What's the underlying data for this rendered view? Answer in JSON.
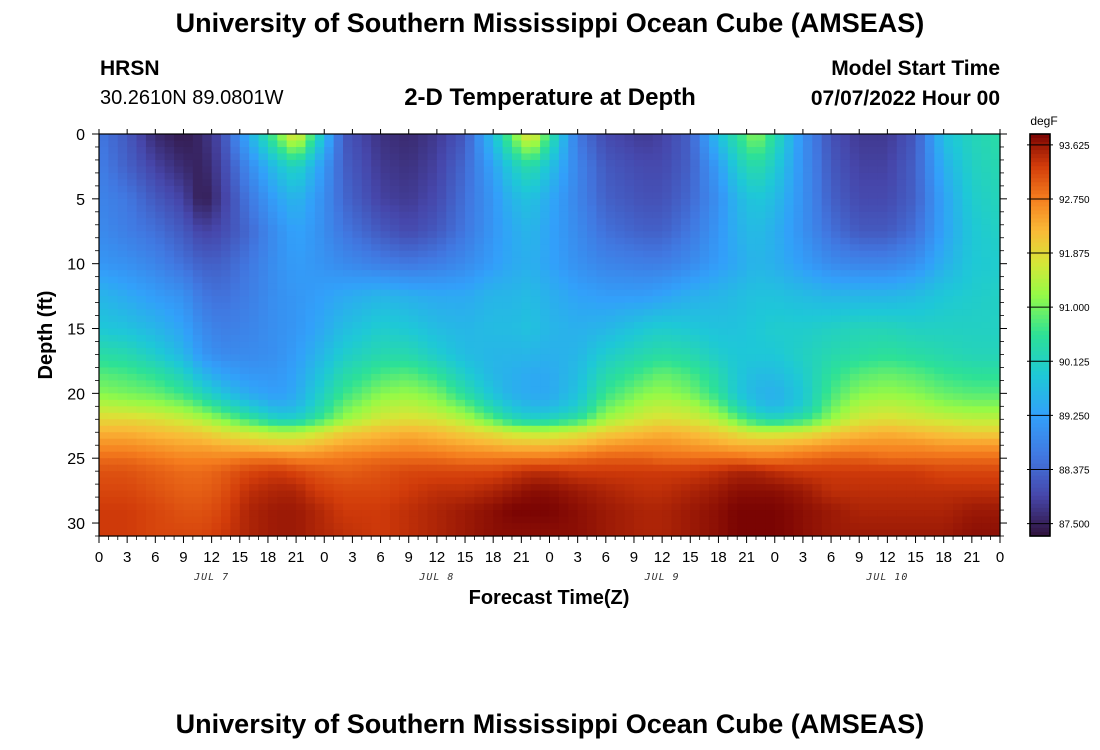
{
  "page": {
    "title": "University of Southern Mississippi Ocean Cube (AMSEAS)",
    "station_code": "HRSN",
    "location": "30.2610N  89.0801W",
    "plot_title": "2-D Temperature at Depth",
    "model_start_label": "Model Start Time",
    "model_start_value": "07/07/2022 Hour 00",
    "footer_title": "University of Southern Mississippi Ocean Cube (AMSEAS)"
  },
  "chart_data": {
    "type": "heatmap",
    "title": "2-D Temperature at Depth",
    "xlabel": "Forecast Time(Z)",
    "ylabel": "Depth (ft)",
    "x_tick_labels": [
      "0",
      "3",
      "6",
      "9",
      "12",
      "15",
      "18",
      "21",
      "0",
      "3",
      "6",
      "9",
      "12",
      "15",
      "18",
      "21",
      "0",
      "3",
      "6",
      "9",
      "12",
      "15",
      "18",
      "21",
      "0",
      "3",
      "6",
      "9",
      "12",
      "15",
      "18",
      "21",
      "0"
    ],
    "x_range_hours": [
      0,
      96
    ],
    "date_labels": [
      {
        "label": "JUL 7",
        "hour": 12
      },
      {
        "label": "JUL 8",
        "hour": 36
      },
      {
        "label": "JUL 9",
        "hour": 60
      },
      {
        "label": "JUL 10",
        "hour": 84
      }
    ],
    "y_range_ft": [
      0,
      31
    ],
    "y_ticks": [
      0,
      5,
      10,
      15,
      20,
      25,
      30
    ],
    "colorbar_unit": "degF",
    "colorbar_ticks": [
      "93.625",
      "92.750",
      "91.875",
      "91.000",
      "90.125",
      "89.250",
      "88.375",
      "87.500"
    ],
    "colorbar_range": [
      87.3,
      93.8
    ],
    "depth_levels_ft": [
      0,
      2.5,
      5,
      7.5,
      10,
      12.5,
      15,
      17,
      18.5,
      20,
      21,
      22,
      23,
      24,
      25,
      26,
      27.5,
      29,
      31
    ],
    "time_nodes_hours": [
      0,
      3,
      6,
      9,
      11,
      13,
      16,
      19,
      21,
      23,
      26,
      30,
      33,
      36,
      39,
      42,
      44,
      46,
      48,
      51,
      54,
      58,
      60,
      63,
      66,
      68,
      70,
      72,
      75,
      78,
      81,
      84,
      87,
      90,
      93,
      96
    ],
    "temperature_degF": [
      [
        88.6,
        88.2,
        87.6,
        87.4,
        87.6,
        88.0,
        89.5,
        91.0,
        92.0,
        90.5,
        88.2,
        87.7,
        87.6,
        87.8,
        88.2,
        89.8,
        91.0,
        92.0,
        90.6,
        88.6,
        88.0,
        87.8,
        87.9,
        88.3,
        89.8,
        90.5,
        91.2,
        90.4,
        89.0,
        88.1,
        87.8,
        87.8,
        88.2,
        89.8,
        90.2,
        90.4
      ],
      [
        88.7,
        88.3,
        87.9,
        87.6,
        87.5,
        87.9,
        88.9,
        89.8,
        90.2,
        89.5,
        88.3,
        87.8,
        87.7,
        87.9,
        88.4,
        89.3,
        90.0,
        90.4,
        89.8,
        88.8,
        88.2,
        88.0,
        88.0,
        88.3,
        89.2,
        90.0,
        90.4,
        90.0,
        89.0,
        88.2,
        87.9,
        87.9,
        88.3,
        89.5,
        90.1,
        90.3
      ],
      [
        88.8,
        88.6,
        88.2,
        87.9,
        87.4,
        87.8,
        88.6,
        89.3,
        89.6,
        89.2,
        88.4,
        87.9,
        87.8,
        88.0,
        88.5,
        89.1,
        89.6,
        89.8,
        89.4,
        88.8,
        88.3,
        88.1,
        88.1,
        88.4,
        89.0,
        89.6,
        89.9,
        89.7,
        89.0,
        88.3,
        88.0,
        88.0,
        88.3,
        89.3,
        90.0,
        90.2
      ],
      [
        88.9,
        88.7,
        88.5,
        88.2,
        87.9,
        88.0,
        88.4,
        89.0,
        89.3,
        89.1,
        88.6,
        88.2,
        88.0,
        88.2,
        88.6,
        89.1,
        89.4,
        89.6,
        89.3,
        88.9,
        88.5,
        88.3,
        88.3,
        88.6,
        89.1,
        89.5,
        89.7,
        89.5,
        89.0,
        88.5,
        88.2,
        88.2,
        88.5,
        89.3,
        89.9,
        90.1
      ],
      [
        89.1,
        89.0,
        88.8,
        88.5,
        88.3,
        88.3,
        88.6,
        89.0,
        89.2,
        89.1,
        88.9,
        88.7,
        88.6,
        88.7,
        88.9,
        89.2,
        89.4,
        89.5,
        89.3,
        89.0,
        88.8,
        88.7,
        88.7,
        88.9,
        89.2,
        89.4,
        89.6,
        89.5,
        89.2,
        88.9,
        88.8,
        88.8,
        89.0,
        89.5,
        89.9,
        90.0
      ],
      [
        89.6,
        89.4,
        89.2,
        89.0,
        88.6,
        88.5,
        88.7,
        89.0,
        89.1,
        89.2,
        89.4,
        89.6,
        89.5,
        89.4,
        89.4,
        89.6,
        89.6,
        89.7,
        89.5,
        89.3,
        89.2,
        89.2,
        89.3,
        89.5,
        89.6,
        89.7,
        89.8,
        89.8,
        89.7,
        89.6,
        89.6,
        89.6,
        89.7,
        89.9,
        90.0,
        90.1
      ],
      [
        89.9,
        89.8,
        89.6,
        89.3,
        88.9,
        88.7,
        88.8,
        89.0,
        89.1,
        89.3,
        89.7,
        90.0,
        89.9,
        89.7,
        89.6,
        89.7,
        89.7,
        89.8,
        89.6,
        89.5,
        89.6,
        89.9,
        90.0,
        89.9,
        89.8,
        89.8,
        89.9,
        90.0,
        90.0,
        90.1,
        90.2,
        90.2,
        90.1,
        90.1,
        90.1,
        90.1
      ],
      [
        90.4,
        90.3,
        90.0,
        89.6,
        89.1,
        88.9,
        88.9,
        89.0,
        89.2,
        89.5,
        90.0,
        90.3,
        90.3,
        90.0,
        89.7,
        89.6,
        89.6,
        89.6,
        89.5,
        89.6,
        90.0,
        90.3,
        90.4,
        90.3,
        90.0,
        89.9,
        89.9,
        89.9,
        90.1,
        90.3,
        90.4,
        90.5,
        90.4,
        90.3,
        90.2,
        90.2
      ],
      [
        90.8,
        90.7,
        90.5,
        90.1,
        89.6,
        89.3,
        89.1,
        89.1,
        89.3,
        89.7,
        90.3,
        90.7,
        90.8,
        90.5,
        90.0,
        89.6,
        89.5,
        89.4,
        89.4,
        89.7,
        90.3,
        90.7,
        90.9,
        90.7,
        90.3,
        89.9,
        89.7,
        89.7,
        90.0,
        90.5,
        90.8,
        90.9,
        90.8,
        90.6,
        90.5,
        90.5
      ],
      [
        91.1,
        91.0,
        90.9,
        90.6,
        90.2,
        89.8,
        89.4,
        89.2,
        89.4,
        89.9,
        90.6,
        91.1,
        91.2,
        91.0,
        90.4,
        89.8,
        89.5,
        89.4,
        89.4,
        89.8,
        90.6,
        91.1,
        91.2,
        91.0,
        90.5,
        89.9,
        89.6,
        89.5,
        89.9,
        90.7,
        91.1,
        91.2,
        91.1,
        90.9,
        90.8,
        90.8
      ],
      [
        91.5,
        91.4,
        91.3,
        91.1,
        90.8,
        90.4,
        89.9,
        89.5,
        89.6,
        90.1,
        90.9,
        91.4,
        91.5,
        91.3,
        90.9,
        90.2,
        89.8,
        89.6,
        89.6,
        90.0,
        90.9,
        91.4,
        91.5,
        91.4,
        90.9,
        90.3,
        89.8,
        89.6,
        90.0,
        90.9,
        91.4,
        91.5,
        91.4,
        91.2,
        91.1,
        91.1
      ],
      [
        91.9,
        91.9,
        91.8,
        91.6,
        91.4,
        91.1,
        90.6,
        90.1,
        90.1,
        90.5,
        91.2,
        91.7,
        91.8,
        91.7,
        91.4,
        90.8,
        90.3,
        90.1,
        90.2,
        90.5,
        91.3,
        91.7,
        91.8,
        91.7,
        91.4,
        90.9,
        90.4,
        90.2,
        90.5,
        91.2,
        91.7,
        91.8,
        91.7,
        91.6,
        91.5,
        91.5
      ],
      [
        92.3,
        92.3,
        92.2,
        92.1,
        92.0,
        91.8,
        91.6,
        91.4,
        91.4,
        91.6,
        92.0,
        92.2,
        92.3,
        92.2,
        92.0,
        91.8,
        91.6,
        91.5,
        91.5,
        91.7,
        92.0,
        92.2,
        92.3,
        92.2,
        92.0,
        91.8,
        91.6,
        91.6,
        91.7,
        92.0,
        92.2,
        92.3,
        92.2,
        92.1,
        92.0,
        92.0
      ],
      [
        92.6,
        92.6,
        92.5,
        92.4,
        92.4,
        92.3,
        92.2,
        92.1,
        92.1,
        92.2,
        92.4,
        92.5,
        92.6,
        92.5,
        92.4,
        92.3,
        92.2,
        92.2,
        92.2,
        92.3,
        92.5,
        92.6,
        92.6,
        92.5,
        92.4,
        92.3,
        92.3,
        92.3,
        92.4,
        92.5,
        92.6,
        92.6,
        92.6,
        92.5,
        92.5,
        92.5
      ],
      [
        92.9,
        92.9,
        92.8,
        92.7,
        92.7,
        92.7,
        92.8,
        92.8,
        92.7,
        92.7,
        92.8,
        92.9,
        92.9,
        92.9,
        92.8,
        92.8,
        92.8,
        92.8,
        92.8,
        92.9,
        93.0,
        93.0,
        92.9,
        92.9,
        92.9,
        92.9,
        92.8,
        92.8,
        92.9,
        93.0,
        93.0,
        92.9,
        92.9,
        92.9,
        92.9,
        92.9
      ],
      [
        93.1,
        93.1,
        93.0,
        92.9,
        92.9,
        93.0,
        93.2,
        93.3,
        93.2,
        93.1,
        93.0,
        93.1,
        93.2,
        93.2,
        93.2,
        93.2,
        93.3,
        93.4,
        93.4,
        93.3,
        93.3,
        93.3,
        93.3,
        93.3,
        93.4,
        93.5,
        93.5,
        93.4,
        93.3,
        93.3,
        93.3,
        93.3,
        93.3,
        93.2,
        93.2,
        93.2
      ],
      [
        93.2,
        93.2,
        93.1,
        93.0,
        93.0,
        93.1,
        93.4,
        93.5,
        93.5,
        93.3,
        93.2,
        93.2,
        93.3,
        93.4,
        93.4,
        93.5,
        93.6,
        93.7,
        93.7,
        93.6,
        93.5,
        93.4,
        93.4,
        93.5,
        93.6,
        93.7,
        93.7,
        93.7,
        93.6,
        93.4,
        93.4,
        93.4,
        93.4,
        93.4,
        93.4,
        93.4
      ],
      [
        93.3,
        93.3,
        93.2,
        93.1,
        93.1,
        93.2,
        93.5,
        93.6,
        93.6,
        93.5,
        93.3,
        93.3,
        93.4,
        93.5,
        93.6,
        93.7,
        93.8,
        93.8,
        93.8,
        93.7,
        93.6,
        93.5,
        93.5,
        93.6,
        93.7,
        93.8,
        93.8,
        93.8,
        93.7,
        93.6,
        93.5,
        93.5,
        93.5,
        93.5,
        93.6,
        93.6
      ],
      [
        93.3,
        93.3,
        93.2,
        93.2,
        93.2,
        93.3,
        93.5,
        93.6,
        93.6,
        93.5,
        93.4,
        93.3,
        93.4,
        93.5,
        93.6,
        93.7,
        93.7,
        93.7,
        93.7,
        93.7,
        93.6,
        93.5,
        93.5,
        93.6,
        93.7,
        93.8,
        93.8,
        93.8,
        93.7,
        93.6,
        93.6,
        93.6,
        93.6,
        93.6,
        93.7,
        93.7
      ]
    ]
  }
}
